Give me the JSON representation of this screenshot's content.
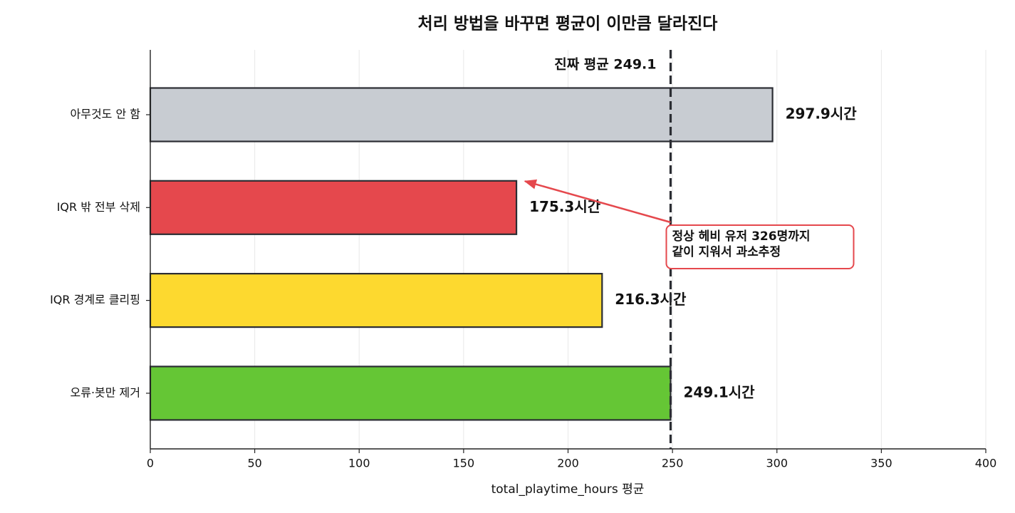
{
  "chart_data": {
    "type": "barh",
    "title": "처리 방법을 바꾸면 평균이 이만큼 달라진다",
    "xlabel": "total_playtime_hours 평균",
    "categories": [
      "아무것도 안 함",
      "IQR 밖 전부 삭제",
      "IQR 경계로 클리핑",
      "오류·봇만 제거"
    ],
    "values": [
      297.9,
      175.3,
      216.3,
      249.1
    ],
    "value_labels": [
      "297.9시간",
      "175.3시간",
      "216.3시간",
      "249.1시간"
    ],
    "colors": [
      "#c8ccd2",
      "#e5484d",
      "#fdd92f",
      "#65c635"
    ],
    "xlim": [
      0,
      400
    ],
    "xticks": [
      0,
      50,
      100,
      150,
      200,
      250,
      300,
      350,
      400
    ],
    "grid": true,
    "reference_line": {
      "value": 249.1,
      "label": "진짜 평균 249.1",
      "color": "#2b2d33"
    },
    "annotation": {
      "lines": [
        "정상 헤비 유저 326명까지",
        "같이 지워서 과소추정"
      ],
      "color": "#e5484d",
      "target": 1
    }
  }
}
